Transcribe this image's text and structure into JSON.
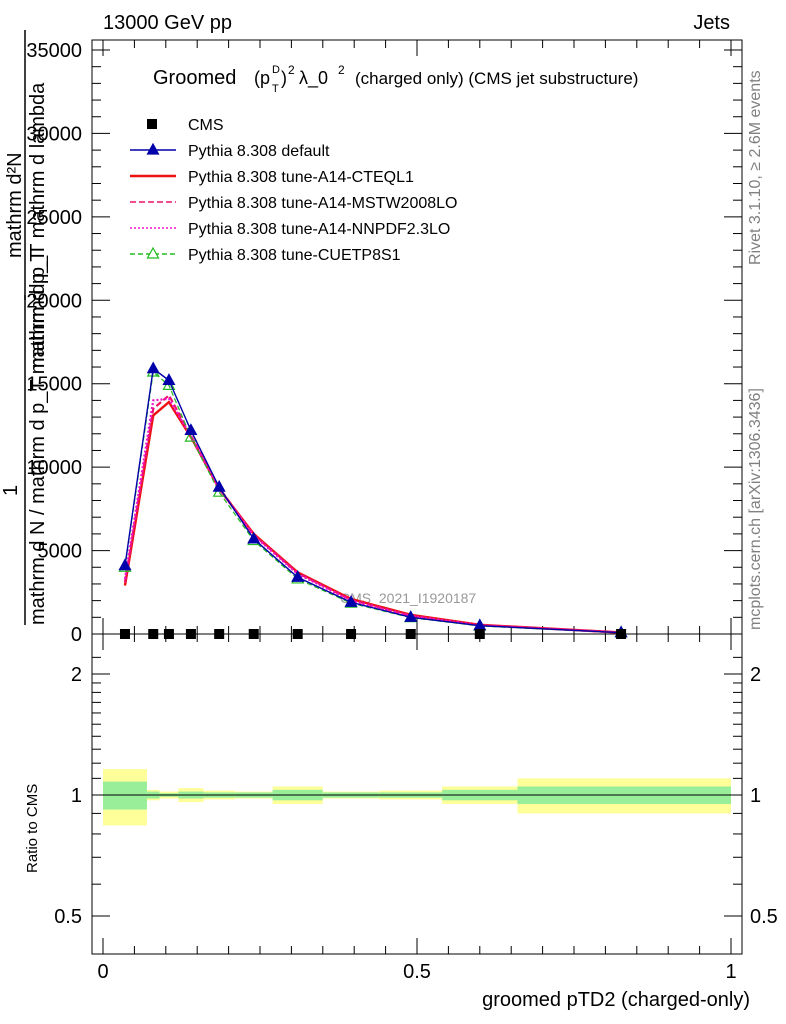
{
  "header": {
    "left": "13000 GeV pp",
    "right": "Jets"
  },
  "side_text": {
    "rivet": "Rivet 3.1.10, ≥ 2.6M events",
    "mcplots": "mcplots.cern.ch [arXiv:1306.3436]"
  },
  "watermark": "CMS_2021_I1920187",
  "title": {
    "prefix": "Groomed",
    "p": "p",
    "sup_d": "D",
    "sub_t": "T",
    "pow": "2",
    "lambda": "λ_0",
    "pow2": "2",
    "suffix": "(charged only) (CMS jet substructure)"
  },
  "ylabel_top": {
    "num": "mathrm d²N",
    "den": "mathrm d p_T mathrm d lambda",
    "prefix": "1",
    "den2": "mathrm d N / mathrm d p_T"
  },
  "ylabel_top_text": {
    "line1": "mathrm d²N",
    "line2": "mathrm d p_T mathrm d lambda",
    "one": "1",
    "line3": "mathrm d N / mathrm d p_T mathrm d p_T"
  },
  "ylabel_bottom": "Ratio to CMS",
  "xlabel": "groomed pTD2 (charged-only)",
  "legend": [
    {
      "label": "CMS",
      "color": "#000000",
      "style": "marker-square"
    },
    {
      "label": "Pythia 8.308 default",
      "color": "#0000aa",
      "style": "solid-triangle"
    },
    {
      "label": "Pythia 8.308 tune-A14-CTEQL1",
      "color": "#ee1111",
      "style": "solid"
    },
    {
      "label": "Pythia 8.308 tune-A14-MSTW2008LO",
      "color": "#ee1166",
      "style": "dashed"
    },
    {
      "label": "Pythia 8.308 tune-A14-NNPDF2.3LO",
      "color": "#ee11cc",
      "style": "dotted"
    },
    {
      "label": "Pythia 8.308 tune-CUETP8S1",
      "color": "#22bb22",
      "style": "dashed-open-triangle"
    }
  ],
  "chart_data": [
    {
      "type": "line",
      "title": "Groomed (p_T^D)^2 λ_0^2 (charged only) (CMS jet substructure)",
      "xlabel": "groomed pTD2 (charged-only)",
      "xlim": [
        0,
        1
      ],
      "ylim": [
        0,
        35000
      ],
      "y_ticks": [
        0,
        5000,
        10000,
        15000,
        20000,
        25000,
        30000,
        35000
      ],
      "y_tick_labels": [
        "0",
        "5000",
        "10000",
        "15000",
        "20000",
        "25000",
        "30000",
        "35000"
      ],
      "x_ticks": [
        0,
        0.5,
        1
      ],
      "x_tick_labels": [
        "0",
        "0.5",
        "1"
      ],
      "x": [
        0.035,
        0.08,
        0.105,
        0.14,
        0.185,
        0.24,
        0.31,
        0.395,
        0.49,
        0.6,
        0.825
      ],
      "series": [
        {
          "name": "CMS",
          "color": "#000000",
          "values": [
            0,
            0,
            0,
            0,
            0,
            0,
            0,
            0,
            0,
            0,
            0
          ]
        },
        {
          "name": "Pythia 8.308 default",
          "color": "#0000aa",
          "values": [
            4100,
            15900,
            15200,
            12200,
            8800,
            5700,
            3400,
            1900,
            1000,
            500,
            80
          ]
        },
        {
          "name": "Pythia 8.308 tune-A14-CTEQL1",
          "color": "#ee1111",
          "values": [
            2900,
            13100,
            13900,
            11800,
            8700,
            6000,
            3700,
            2100,
            1150,
            550,
            90
          ]
        },
        {
          "name": "Pythia 8.308 tune-A14-MSTW2008LO",
          "color": "#ee1166",
          "values": [
            3100,
            13500,
            14300,
            11900,
            8750,
            5950,
            3650,
            2050,
            1100,
            530,
            85
          ]
        },
        {
          "name": "Pythia 8.308 tune-A14-NNPDF2.3LO",
          "color": "#ee11cc",
          "values": [
            3300,
            14000,
            14100,
            11850,
            8700,
            5900,
            3600,
            2000,
            1080,
            520,
            85
          ]
        },
        {
          "name": "Pythia 8.308 tune-CUETP8S1",
          "color": "#22bb22",
          "values": [
            4000,
            15700,
            14900,
            11800,
            8500,
            5600,
            3300,
            1850,
            980,
            480,
            75
          ]
        }
      ]
    },
    {
      "type": "area",
      "ylabel": "Ratio to CMS",
      "xlim": [
        0,
        1
      ],
      "ylim": [
        0.4,
        2.3
      ],
      "y_scale": "log",
      "y_ticks": [
        0.5,
        1,
        2
      ],
      "y_tick_labels": [
        "0.5",
        "1",
        "2"
      ],
      "bins": [
        [
          0,
          0.07
        ],
        [
          0.07,
          0.09
        ],
        [
          0.09,
          0.12
        ],
        [
          0.12,
          0.16
        ],
        [
          0.16,
          0.21
        ],
        [
          0.21,
          0.27
        ],
        [
          0.27,
          0.35
        ],
        [
          0.35,
          0.44
        ],
        [
          0.44,
          0.54
        ],
        [
          0.54,
          0.66
        ],
        [
          0.66,
          1.0
        ]
      ],
      "stat_band": [
        [
          0.92,
          1.08
        ],
        [
          0.98,
          1.02
        ],
        [
          0.99,
          1.01
        ],
        [
          0.98,
          1.02
        ],
        [
          0.985,
          1.015
        ],
        [
          0.985,
          1.015
        ],
        [
          0.97,
          1.03
        ],
        [
          0.985,
          1.015
        ],
        [
          0.985,
          1.015
        ],
        [
          0.97,
          1.03
        ],
        [
          0.95,
          1.05
        ]
      ],
      "total_band": [
        [
          0.84,
          1.16
        ],
        [
          0.97,
          1.03
        ],
        [
          0.98,
          1.02
        ],
        [
          0.96,
          1.04
        ],
        [
          0.975,
          1.025
        ],
        [
          0.98,
          1.02
        ],
        [
          0.95,
          1.05
        ],
        [
          0.98,
          1.02
        ],
        [
          0.975,
          1.025
        ],
        [
          0.95,
          1.05
        ],
        [
          0.9,
          1.1
        ]
      ],
      "band_colors": {
        "stat": "#99ee99",
        "total": "#ffff99"
      },
      "reference_line": 1
    }
  ]
}
